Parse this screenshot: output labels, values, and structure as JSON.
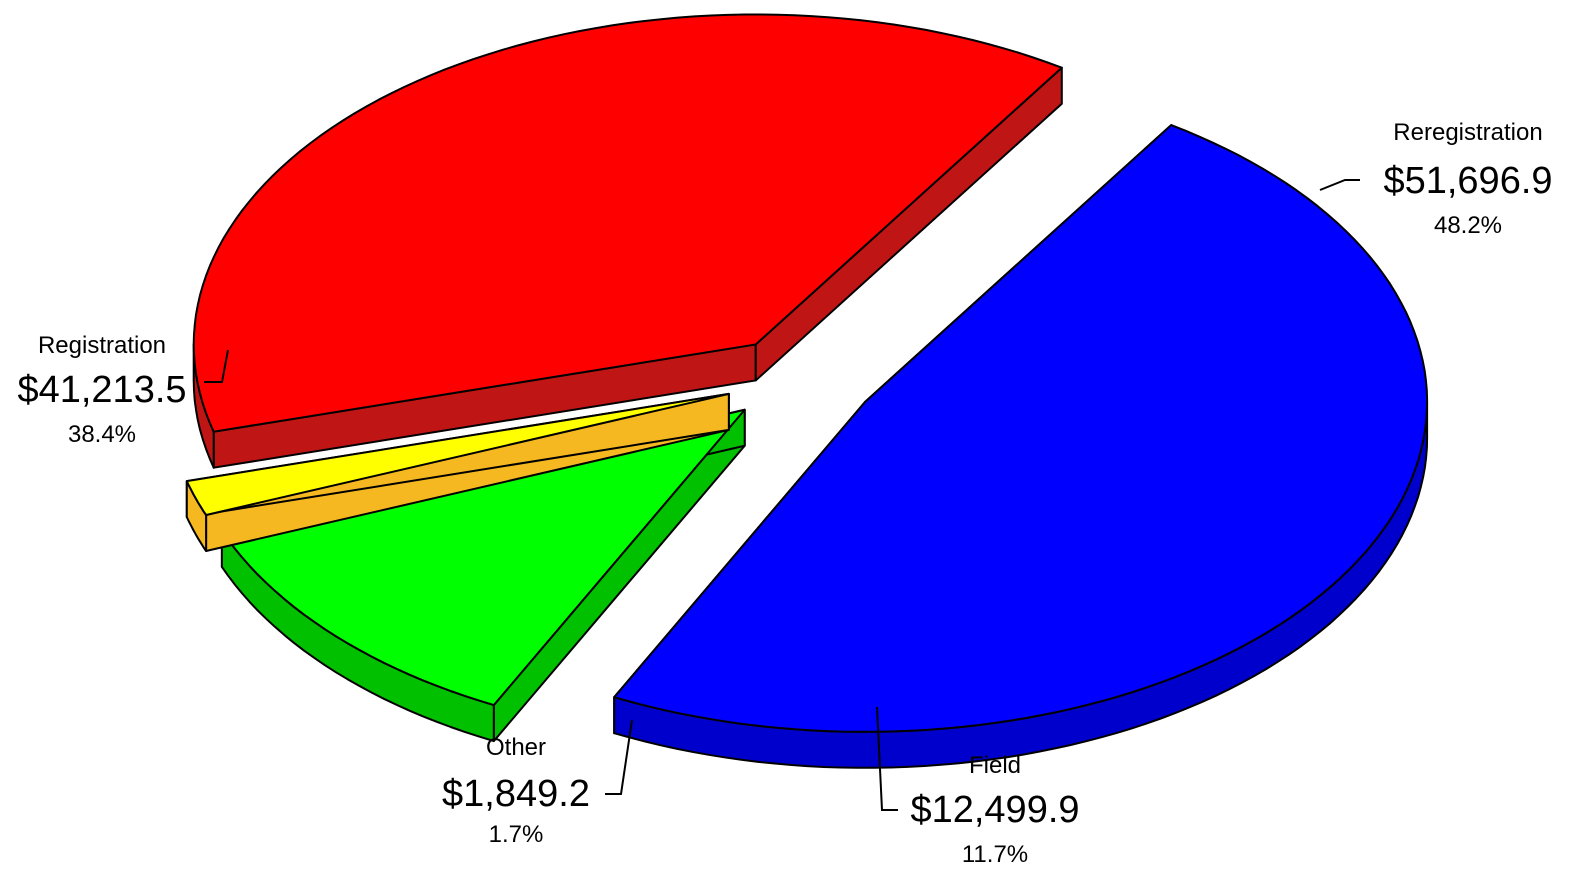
{
  "chart_data": {
    "type": "pie",
    "title": "",
    "three_d": true,
    "exploded": true,
    "slices": [
      {
        "label": "Reregistration",
        "value": 51696.9,
        "value_label": "$51,696.9",
        "percent_label": "48.2%",
        "color": "#0000ff",
        "side_color": "#0000cc"
      },
      {
        "label": "Field",
        "value": 12499.9,
        "value_label": "$12,499.9",
        "percent_label": "11.7%",
        "color": "#00ff00",
        "side_color": "#00c000"
      },
      {
        "label": "Other",
        "value": 1849.2,
        "value_label": "$1,849.2",
        "percent_label": "1.7%",
        "color": "#ffff00",
        "side_color": "#f5b820"
      },
      {
        "label": "Registration",
        "value": 41213.5,
        "value_label": "$41,213.5",
        "percent_label": "38.4%",
        "color": "#ff0000",
        "side_color": "#c01515"
      }
    ]
  }
}
